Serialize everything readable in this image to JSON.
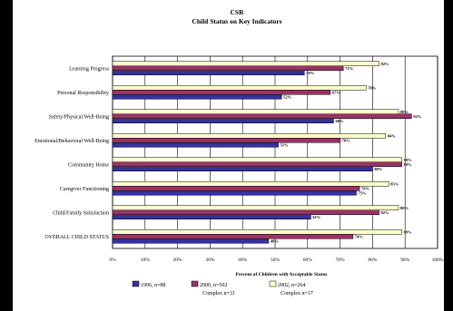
{
  "chart_data": {
    "type": "bar",
    "orientation": "horizontal",
    "title": "CSR",
    "subtitle": "Child Status on Key Indicators",
    "xlabel": "Precent of Children with Acceptable Status",
    "xlim": [
      0,
      100
    ],
    "x_ticks": [
      "0%",
      "10%",
      "20%",
      "30%",
      "40%",
      "50%",
      "60%",
      "70%",
      "80%",
      "90%",
      "100%"
    ],
    "grid": "vertical",
    "legend_position": "bottom",
    "categories": [
      "Learning Progress",
      "Personal Responsibility",
      "Safety/Physical Well-Being",
      "Emotional/Behavioral Well-Being",
      "Community Home",
      "Caregiver Functioning",
      "Child/Family Satisfaction",
      "OVERALL CHILD STATUS"
    ],
    "series": [
      {
        "name": "2002, n=264",
        "sublabel": "Complex n=17",
        "color": "#ffffcc",
        "values": [
          82,
          78,
          88,
          84,
          89,
          85,
          88,
          89
        ],
        "labels": [
          "82%",
          "78%",
          "88%",
          "84%",
          "89%",
          "85%",
          "88%",
          "89%"
        ]
      },
      {
        "name": "2000, n=502",
        "sublabel": "Complex n=31",
        "color": "#993366",
        "values": [
          71,
          67,
          92,
          70,
          89,
          76,
          82,
          74
        ],
        "labels": [
          "71%",
          "67%",
          "92%",
          "70%",
          "89%",
          "76%",
          "82%",
          "74%"
        ]
      },
      {
        "name": "1996, n=88",
        "sublabel": "",
        "color": "#333399",
        "values": [
          59,
          52,
          68,
          51,
          80,
          75,
          61,
          48
        ],
        "labels": [
          "59%",
          "52%",
          "68%",
          "51%",
          "80%",
          "75%",
          "61%",
          "48%"
        ]
      }
    ],
    "legend_order": [
      2,
      1,
      0
    ]
  }
}
